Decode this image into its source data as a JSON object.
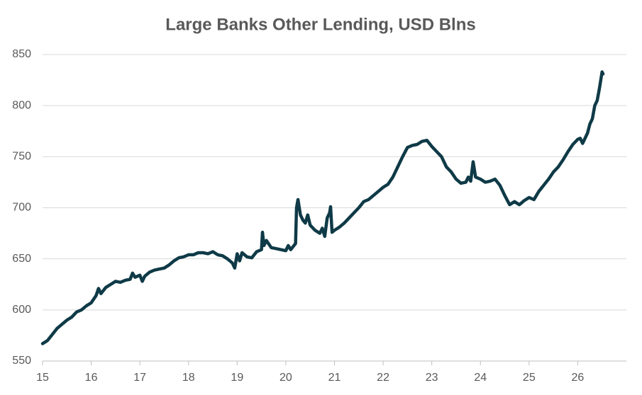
{
  "chart_data": {
    "type": "line",
    "title": "Large Banks Other Lending, USD Blns",
    "x": [
      15.0,
      15.1,
      15.2,
      15.3,
      15.4,
      15.5,
      15.6,
      15.7,
      15.8,
      15.9,
      16.0,
      16.1,
      16.15,
      16.2,
      16.3,
      16.4,
      16.5,
      16.6,
      16.7,
      16.8,
      16.85,
      16.9,
      17.0,
      17.05,
      17.1,
      17.2,
      17.3,
      17.4,
      17.5,
      17.6,
      17.7,
      17.8,
      17.9,
      18.0,
      18.1,
      18.2,
      18.3,
      18.4,
      18.5,
      18.6,
      18.7,
      18.8,
      18.9,
      18.95,
      19.0,
      19.05,
      19.1,
      19.2,
      19.3,
      19.4,
      19.5,
      19.52,
      19.55,
      19.6,
      19.7,
      19.8,
      19.9,
      20.0,
      20.05,
      20.1,
      20.2,
      20.22,
      20.25,
      20.3,
      20.35,
      20.4,
      20.45,
      20.5,
      20.6,
      20.7,
      20.75,
      20.8,
      20.85,
      20.9,
      20.92,
      20.95,
      21.0,
      21.1,
      21.2,
      21.3,
      21.4,
      21.5,
      21.6,
      21.7,
      21.8,
      21.9,
      22.0,
      22.1,
      22.2,
      22.3,
      22.4,
      22.5,
      22.6,
      22.7,
      22.8,
      22.9,
      23.0,
      23.1,
      23.2,
      23.3,
      23.4,
      23.5,
      23.6,
      23.7,
      23.75,
      23.8,
      23.85,
      23.9,
      24.0,
      24.1,
      24.2,
      24.3,
      24.4,
      24.5,
      24.6,
      24.7,
      24.8,
      24.9,
      25.0,
      25.1,
      25.2,
      25.3,
      25.4,
      25.5,
      25.6,
      25.7,
      25.8,
      25.9,
      26.0,
      26.05,
      26.1,
      26.2,
      26.25,
      26.3,
      26.35,
      26.4,
      26.45,
      26.5,
      26.52
    ],
    "values": [
      567,
      570,
      576,
      582,
      586,
      590,
      593,
      598,
      600,
      604,
      607,
      614,
      621,
      616,
      622,
      625,
      628,
      627,
      629,
      630,
      636,
      632,
      634,
      628,
      633,
      637,
      639,
      640,
      641,
      644,
      648,
      651,
      652,
      654,
      654,
      656,
      656,
      655,
      657,
      654,
      653,
      650,
      646,
      641,
      655,
      648,
      656,
      652,
      651,
      657,
      659,
      676,
      663,
      668,
      661,
      660,
      659,
      658,
      663,
      659,
      665,
      700,
      708,
      693,
      688,
      685,
      693,
      683,
      678,
      675,
      680,
      672,
      690,
      695,
      701,
      676,
      678,
      681,
      685,
      690,
      695,
      700,
      706,
      708,
      712,
      716,
      720,
      723,
      730,
      740,
      750,
      759,
      761,
      762,
      765,
      766,
      760,
      755,
      750,
      740,
      735,
      728,
      724,
      725,
      730,
      726,
      745,
      730,
      728,
      725,
      726,
      728,
      722,
      712,
      703,
      706,
      703,
      707,
      710,
      708,
      716,
      722,
      728,
      735,
      740,
      747,
      755,
      762,
      767,
      768,
      763,
      773,
      782,
      787,
      800,
      805,
      818,
      833,
      831
    ],
    "color": "#0f3a47",
    "xlim": [
      15,
      27
    ],
    "xticks": [
      15,
      16,
      17,
      18,
      19,
      20,
      21,
      22,
      23,
      24,
      25,
      26
    ],
    "ylim": [
      550,
      850
    ],
    "yticks": [
      550,
      600,
      650,
      700,
      750,
      800,
      850
    ],
    "grid": true
  }
}
